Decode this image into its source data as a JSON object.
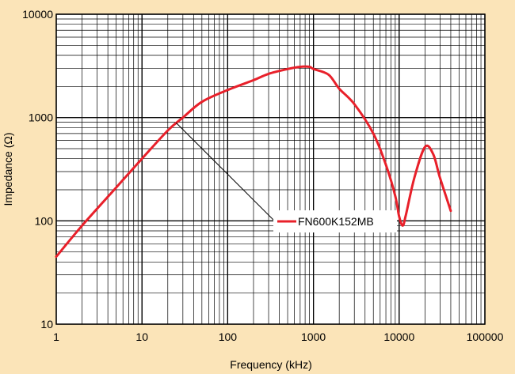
{
  "chart_data": {
    "type": "line",
    "title": "",
    "xlabel": "Frequency (kHz)",
    "ylabel": "Impedance (Ω)",
    "x_scale": "log",
    "y_scale": "log",
    "xlim": [
      1,
      100000
    ],
    "ylim": [
      10,
      10000
    ],
    "grid": true,
    "x_ticks": [
      "1",
      "10",
      "100",
      "1000",
      "10000",
      "100000"
    ],
    "y_ticks": [
      "10",
      "100",
      "1000",
      "10000"
    ],
    "legend_position": "center-right",
    "series": [
      {
        "name": "FN600K152MB",
        "color": "#e8202a",
        "x": [
          1,
          2,
          5,
          10,
          20,
          30,
          50,
          100,
          200,
          300,
          500,
          700,
          900,
          1000,
          1500,
          2000,
          3000,
          5000,
          7000,
          9000,
          10000,
          11000,
          12000,
          15000,
          20000,
          25000,
          30000,
          40000
        ],
        "y": [
          45,
          90,
          210,
          400,
          750,
          1000,
          1420,
          1850,
          2300,
          2650,
          2950,
          3100,
          3100,
          2950,
          2600,
          1900,
          1350,
          700,
          350,
          175,
          110,
          90,
          115,
          260,
          520,
          440,
          260,
          125
        ]
      }
    ]
  }
}
